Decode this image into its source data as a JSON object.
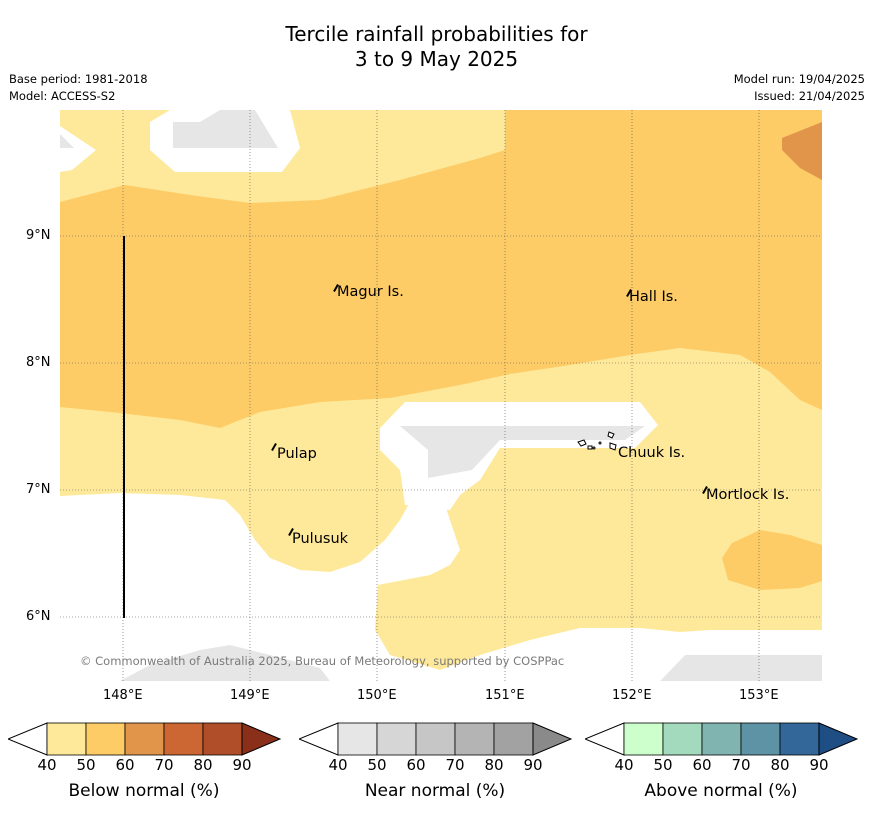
{
  "title": {
    "line1": "Tercile rainfall probabilities for",
    "line2": "3 to 9 May 2025"
  },
  "meta": {
    "base_period": "Base period: 1981-2018",
    "model": "Model: ACCESS-S2",
    "model_run": "Model run: 19/04/2025",
    "issued": "Issued: 21/04/2025"
  },
  "map": {
    "lon_labels": [
      "148°E",
      "149°E",
      "150°E",
      "151°E",
      "152°E",
      "153°E"
    ],
    "lat_labels": [
      "9°N",
      "8°N",
      "7°N",
      "6°N"
    ],
    "places": [
      "Magur Is.",
      "Hall Is.",
      "Pulap",
      "Chuuk Is.",
      "Mortlock Is.",
      "Pulusuk"
    ],
    "copyright": "© Commonwealth of Australia 2025, Bureau of Meteorology, supported by COSPPac",
    "colors": {
      "below_40": "#fee99a",
      "below_50": "#fdcc66",
      "below_60": "#e0954a",
      "near_40": "#e6e6e6"
    }
  },
  "legend": {
    "ticks": [
      "40",
      "50",
      "60",
      "70",
      "80",
      "90"
    ],
    "below": {
      "title": "Below normal (%)",
      "colors": [
        "#fee99a",
        "#fdcc66",
        "#e0954a",
        "#cc6633",
        "#b04e2a",
        "#8a2f1a"
      ]
    },
    "near": {
      "title": "Near normal (%)",
      "colors": [
        "#e6e6e6",
        "#d6d6d6",
        "#c6c6c6",
        "#b4b4b4",
        "#a2a2a2",
        "#8a8a8a"
      ]
    },
    "above": {
      "title": "Above normal (%)",
      "colors": [
        "#ccffcc",
        "#a3d9bd",
        "#7fb4b0",
        "#5e93a5",
        "#336699",
        "#1f4e85"
      ]
    }
  }
}
